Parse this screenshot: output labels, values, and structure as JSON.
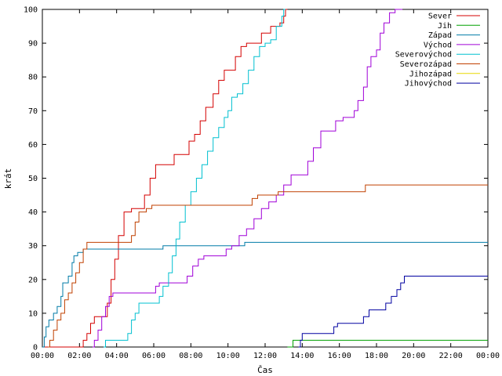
{
  "chart_data": {
    "type": "line",
    "xlabel": "Čas",
    "ylabel": "krát",
    "xlim": [
      0,
      24
    ],
    "ylim": [
      0,
      100
    ],
    "x_ticks": [
      "00:00",
      "02:00",
      "04:00",
      "06:00",
      "08:00",
      "10:00",
      "12:00",
      "14:00",
      "16:00",
      "18:00",
      "20:00",
      "22:00",
      "00:00"
    ],
    "y_ticks": [
      "0",
      "10",
      "20",
      "30",
      "40",
      "50",
      "60",
      "70",
      "80",
      "90",
      "100"
    ],
    "grid": false,
    "legend_position": "top-right",
    "x_unit": "hours",
    "series": [
      {
        "name": "Sever",
        "color": "#d40000",
        "points": [
          [
            0,
            0
          ],
          [
            2.1,
            0
          ],
          [
            2.2,
            2
          ],
          [
            2.4,
            4
          ],
          [
            2.6,
            7
          ],
          [
            2.8,
            9
          ],
          [
            3.3,
            9
          ],
          [
            3.5,
            13
          ],
          [
            3.7,
            20
          ],
          [
            3.9,
            26
          ],
          [
            4.1,
            33
          ],
          [
            4.4,
            40
          ],
          [
            4.8,
            41
          ],
          [
            5.3,
            41
          ],
          [
            5.5,
            45
          ],
          [
            5.8,
            50
          ],
          [
            6.1,
            54
          ],
          [
            6.9,
            54
          ],
          [
            7.1,
            57
          ],
          [
            7.6,
            57
          ],
          [
            7.9,
            61
          ],
          [
            8.2,
            63
          ],
          [
            8.5,
            67
          ],
          [
            8.8,
            71
          ],
          [
            9.2,
            75
          ],
          [
            9.5,
            79
          ],
          [
            9.8,
            82
          ],
          [
            10.2,
            82
          ],
          [
            10.4,
            86
          ],
          [
            10.7,
            89
          ],
          [
            11.0,
            90
          ],
          [
            11.5,
            90
          ],
          [
            11.8,
            93
          ],
          [
            12.0,
            93
          ],
          [
            12.3,
            95
          ],
          [
            12.8,
            96
          ],
          [
            13.0,
            98
          ],
          [
            13.1,
            100
          ],
          [
            13.2,
            100
          ]
        ]
      },
      {
        "name": "Jih",
        "color": "#00a000",
        "points": [
          [
            13.2,
            0
          ],
          [
            13.4,
            0
          ],
          [
            13.5,
            2
          ],
          [
            24,
            2
          ]
        ]
      },
      {
        "name": "Západ",
        "color": "#007ba7",
        "points": [
          [
            0,
            0
          ],
          [
            0.1,
            3
          ],
          [
            0.2,
            6
          ],
          [
            0.35,
            8
          ],
          [
            0.6,
            10
          ],
          [
            0.8,
            12
          ],
          [
            1.0,
            15
          ],
          [
            1.1,
            19
          ],
          [
            1.4,
            21
          ],
          [
            1.6,
            25
          ],
          [
            1.7,
            27
          ],
          [
            1.9,
            28
          ],
          [
            2.2,
            29
          ],
          [
            6.3,
            29
          ],
          [
            6.5,
            30
          ],
          [
            10.7,
            30
          ],
          [
            10.9,
            31
          ],
          [
            24,
            31
          ]
        ]
      },
      {
        "name": "Východ",
        "color": "#a000d8",
        "points": [
          [
            2.7,
            0
          ],
          [
            2.8,
            2
          ],
          [
            3.0,
            5
          ],
          [
            3.2,
            9
          ],
          [
            3.4,
            12
          ],
          [
            3.6,
            15
          ],
          [
            3.8,
            16
          ],
          [
            5.9,
            16
          ],
          [
            6.1,
            18
          ],
          [
            6.3,
            19
          ],
          [
            7.6,
            19
          ],
          [
            7.8,
            21
          ],
          [
            8.1,
            24
          ],
          [
            8.4,
            26
          ],
          [
            8.7,
            27
          ],
          [
            9.6,
            27
          ],
          [
            9.9,
            29
          ],
          [
            10.2,
            30
          ],
          [
            10.6,
            33
          ],
          [
            11.0,
            35
          ],
          [
            11.4,
            38
          ],
          [
            11.8,
            41
          ],
          [
            12.2,
            43
          ],
          [
            12.6,
            45
          ],
          [
            13.0,
            48
          ],
          [
            13.4,
            51
          ],
          [
            14.0,
            51
          ],
          [
            14.3,
            55
          ],
          [
            14.6,
            59
          ],
          [
            15.0,
            64
          ],
          [
            15.4,
            64
          ],
          [
            15.8,
            67
          ],
          [
            16.2,
            68
          ],
          [
            16.6,
            68
          ],
          [
            16.8,
            70
          ],
          [
            17.0,
            73
          ],
          [
            17.3,
            77
          ],
          [
            17.5,
            83
          ],
          [
            17.7,
            86
          ],
          [
            18.0,
            88
          ],
          [
            18.2,
            93
          ],
          [
            18.4,
            96
          ],
          [
            18.7,
            99
          ],
          [
            19.0,
            100
          ],
          [
            19.4,
            100
          ]
        ]
      },
      {
        "name": "Severovýchod",
        "color": "#00c0d0",
        "points": [
          [
            3.3,
            0
          ],
          [
            3.4,
            2
          ],
          [
            4.4,
            2
          ],
          [
            4.6,
            4
          ],
          [
            4.8,
            8
          ],
          [
            5.0,
            10
          ],
          [
            5.2,
            13
          ],
          [
            6.0,
            13
          ],
          [
            6.3,
            15
          ],
          [
            6.5,
            18
          ],
          [
            6.8,
            22
          ],
          [
            7.0,
            27
          ],
          [
            7.2,
            32
          ],
          [
            7.4,
            37
          ],
          [
            7.7,
            42
          ],
          [
            8.0,
            46
          ],
          [
            8.3,
            50
          ],
          [
            8.6,
            54
          ],
          [
            8.9,
            58
          ],
          [
            9.2,
            62
          ],
          [
            9.5,
            65
          ],
          [
            9.8,
            68
          ],
          [
            10.0,
            70
          ],
          [
            10.2,
            74
          ],
          [
            10.5,
            75
          ],
          [
            10.8,
            78
          ],
          [
            11.1,
            82
          ],
          [
            11.4,
            86
          ],
          [
            11.7,
            89
          ],
          [
            12.0,
            90
          ],
          [
            12.3,
            91
          ],
          [
            12.6,
            95
          ],
          [
            12.9,
            98
          ],
          [
            13.0,
            100
          ],
          [
            13.1,
            100
          ]
        ]
      },
      {
        "name": "Severozápad",
        "color": "#c04000",
        "points": [
          [
            0.3,
            0
          ],
          [
            0.4,
            2
          ],
          [
            0.6,
            5
          ],
          [
            0.8,
            8
          ],
          [
            1.0,
            10
          ],
          [
            1.2,
            14
          ],
          [
            1.4,
            16
          ],
          [
            1.6,
            19
          ],
          [
            1.8,
            22
          ],
          [
            2.0,
            25
          ],
          [
            2.2,
            29
          ],
          [
            2.4,
            31
          ],
          [
            4.6,
            31
          ],
          [
            4.8,
            33
          ],
          [
            5.0,
            37
          ],
          [
            5.2,
            40
          ],
          [
            5.6,
            41
          ],
          [
            5.9,
            42
          ],
          [
            11.2,
            42
          ],
          [
            11.3,
            44
          ],
          [
            11.6,
            45
          ],
          [
            12.6,
            45
          ],
          [
            12.7,
            46
          ],
          [
            17.3,
            46
          ],
          [
            17.4,
            48
          ],
          [
            24,
            48
          ]
        ]
      },
      {
        "name": "Jihozápad",
        "color": "#e8d800",
        "points": []
      },
      {
        "name": "Jihovýchod",
        "color": "#0000a0",
        "points": [
          [
            13.8,
            0
          ],
          [
            13.9,
            2
          ],
          [
            14.0,
            4
          ],
          [
            15.5,
            4
          ],
          [
            15.7,
            6
          ],
          [
            15.9,
            7
          ],
          [
            17.1,
            7
          ],
          [
            17.3,
            9
          ],
          [
            17.6,
            11
          ],
          [
            18.3,
            11
          ],
          [
            18.5,
            13
          ],
          [
            18.8,
            15
          ],
          [
            19.1,
            17
          ],
          [
            19.3,
            19
          ],
          [
            19.5,
            21
          ],
          [
            24,
            21
          ]
        ]
      }
    ]
  }
}
